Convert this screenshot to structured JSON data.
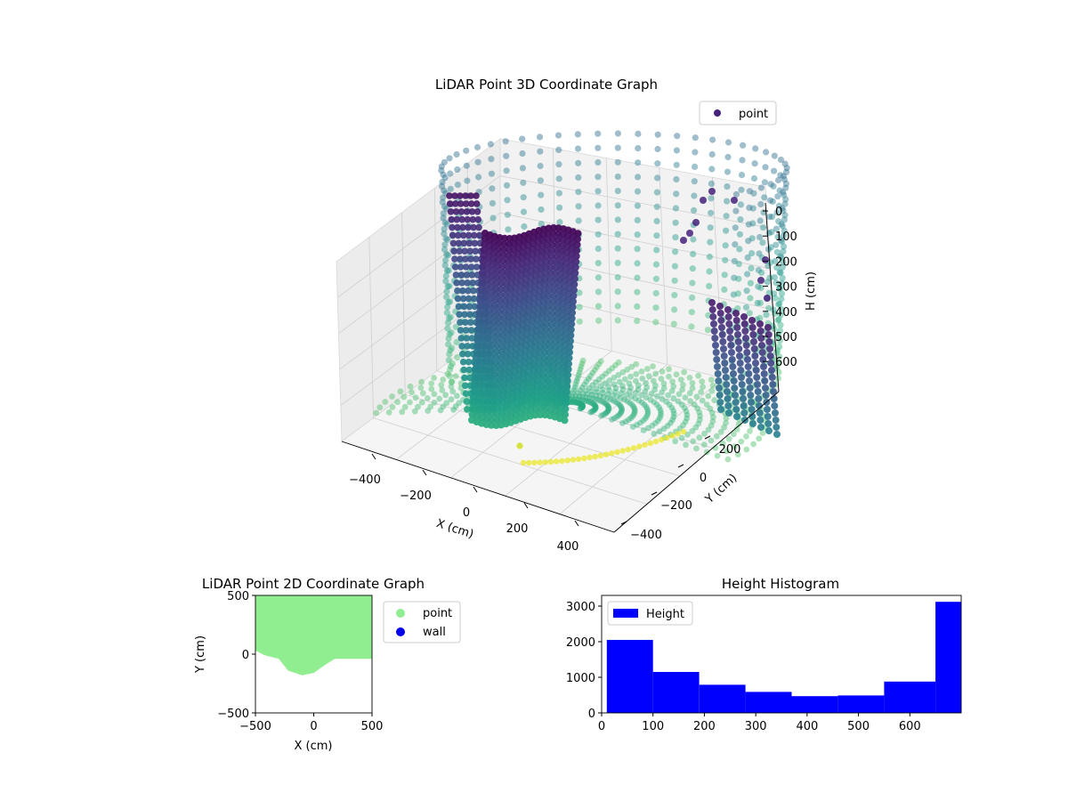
{
  "chart_data": [
    {
      "type": "scatter3d",
      "title": "LiDAR Point 3D Coordinate Graph",
      "xlabel": "X (cm)",
      "ylabel": "Y (cm)",
      "zlabel": "H (cm)",
      "xticks": [
        "−400",
        "−200",
        "0",
        "200",
        "400"
      ],
      "yticks": [
        "−400",
        "−200",
        "0",
        "200"
      ],
      "zticks": [
        "0",
        "100",
        "200",
        "300",
        "400",
        "500",
        "600"
      ],
      "legend": {
        "label": "point",
        "position": "top-right"
      },
      "colormap": "viridis",
      "grid": true
    },
    {
      "type": "scatter",
      "title": "LiDAR Point 2D Coordinate Graph",
      "xlabel": "X (cm)",
      "ylabel": "Y (cm)",
      "xlim": [
        -500,
        500
      ],
      "ylim": [
        -500,
        500
      ],
      "xticks": [
        "−500",
        "0",
        "500"
      ],
      "yticks": [
        "−500",
        "0",
        "500"
      ],
      "region_boundary": [
        [
          -500,
          30
        ],
        [
          -420,
          -10
        ],
        [
          -300,
          -40
        ],
        [
          -220,
          -140
        ],
        [
          -100,
          -180
        ],
        [
          0,
          -160
        ],
        [
          100,
          -90
        ],
        [
          180,
          -40
        ],
        [
          500,
          -40
        ]
      ],
      "series": [
        {
          "name": "point",
          "color": "#90ee90"
        },
        {
          "name": "wall",
          "color": "#0000ee"
        }
      ],
      "legend_position": "outside-right"
    },
    {
      "type": "bar",
      "title": "Height Histogram",
      "xlim": [
        0,
        700
      ],
      "ylim": [
        0,
        3300
      ],
      "xticks": [
        "0",
        "100",
        "200",
        "300",
        "400",
        "500",
        "600"
      ],
      "yticks": [
        "0",
        "1000",
        "2000",
        "3000"
      ],
      "bin_edges": [
        10,
        100,
        190,
        280,
        370,
        460,
        550,
        650,
        700
      ],
      "values": [
        2050,
        1150,
        790,
        590,
        470,
        490,
        880,
        3120
      ],
      "color": "#0000ff",
      "series": [
        {
          "name": "Height"
        }
      ],
      "legend_position": "top-left"
    }
  ]
}
